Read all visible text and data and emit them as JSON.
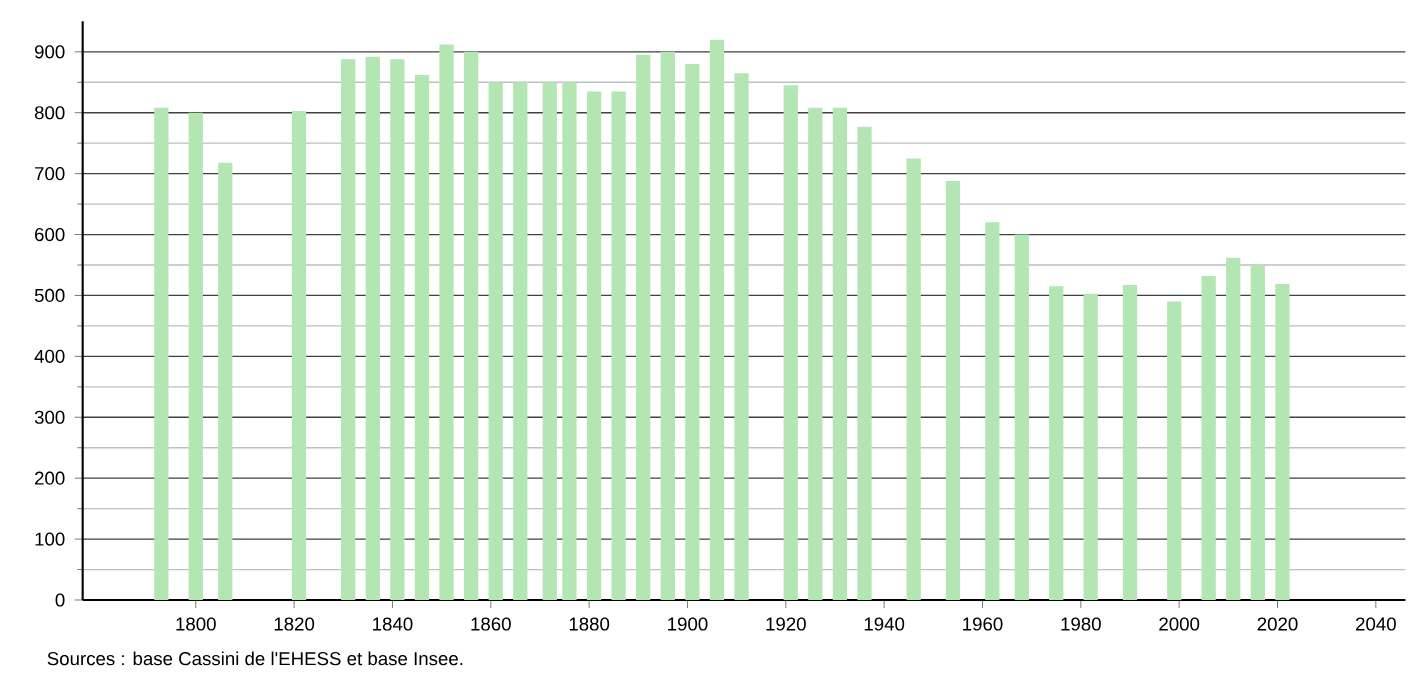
{
  "chart_data": {
    "type": "bar",
    "color": "#b3e6b3",
    "x": [
      1793,
      1800,
      1806,
      1821,
      1831,
      1836,
      1841,
      1846,
      1851,
      1856,
      1861,
      1866,
      1872,
      1876,
      1881,
      1886,
      1891,
      1896,
      1901,
      1906,
      1911,
      1921,
      1926,
      1931,
      1936,
      1946,
      1954,
      1962,
      1968,
      1975,
      1982,
      1990,
      1999,
      2006,
      2011,
      2016,
      2021
    ],
    "values": [
      808,
      800,
      718,
      803,
      888,
      892,
      888,
      862,
      912,
      900,
      850,
      850,
      850,
      850,
      835,
      835,
      895,
      900,
      880,
      920,
      865,
      845,
      808,
      808,
      777,
      725,
      688,
      620,
      600,
      515,
      503,
      517,
      490,
      532,
      562,
      550,
      519
    ],
    "xlim": [
      1777,
      2046
    ],
    "ylim": [
      0,
      950
    ],
    "xticks": [
      1800,
      1820,
      1840,
      1860,
      1880,
      1900,
      1920,
      1940,
      1960,
      1980,
      2000,
      2020,
      2040
    ],
    "yticks": [
      0,
      100,
      200,
      300,
      400,
      500,
      600,
      700,
      800,
      900
    ],
    "grid": "y",
    "annotations": [
      "Sources : base Cassini de l'EHESS et base Insee."
    ]
  }
}
